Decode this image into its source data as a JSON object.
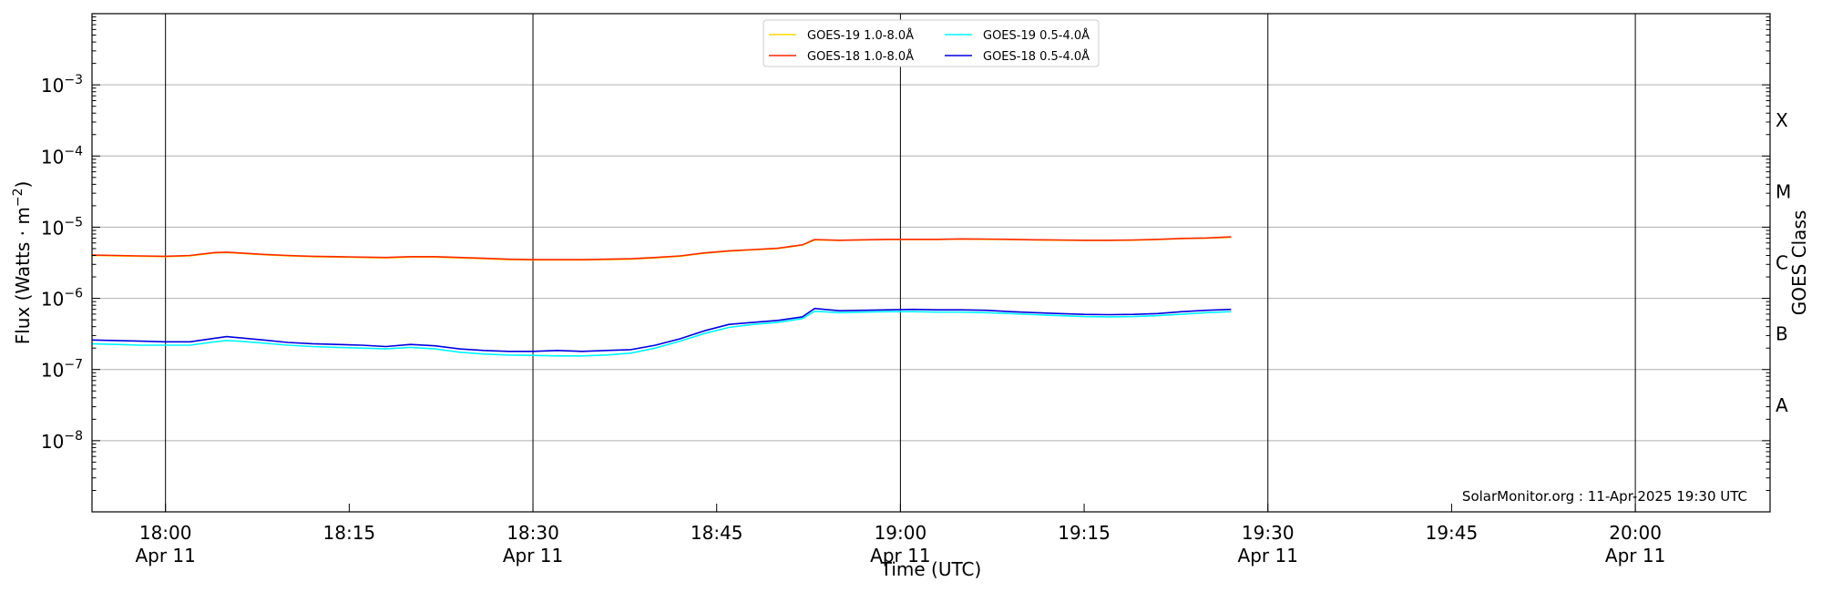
{
  "chart_data": {
    "type": "line",
    "xlabel": "Time (UTC)",
    "ylabel_main": "Flux (Watts · m",
    "ylabel_sup": "−2",
    "ylabel_close": ")",
    "y2label": "GOES Class",
    "scale": "log",
    "xlim": [
      "17:54",
      "20:11"
    ],
    "ylim": [
      1e-09,
      0.01
    ],
    "grid": "horizontal at each decade; vertical lines at 18:00, 18:30, 19:00, 19:30, 20:00",
    "legend": {
      "placement": "top-center",
      "columns": 2
    },
    "x_ticks": [
      {
        "t": "18:00",
        "label": "18:00",
        "sub": "Apr 11",
        "major": true
      },
      {
        "t": "18:15",
        "label": "18:15",
        "sub": "",
        "major": false
      },
      {
        "t": "18:30",
        "label": "18:30",
        "sub": "Apr 11",
        "major": true
      },
      {
        "t": "18:45",
        "label": "18:45",
        "sub": "",
        "major": false
      },
      {
        "t": "19:00",
        "label": "19:00",
        "sub": "Apr 11",
        "major": true
      },
      {
        "t": "19:15",
        "label": "19:15",
        "sub": "",
        "major": false
      },
      {
        "t": "19:30",
        "label": "19:30",
        "sub": "Apr 11",
        "major": true
      },
      {
        "t": "19:45",
        "label": "19:45",
        "sub": "",
        "major": false
      },
      {
        "t": "20:00",
        "label": "20:00",
        "sub": "Apr 11",
        "major": true
      }
    ],
    "y_ticks": [
      {
        "exp": -8,
        "label_base": "10",
        "label_exp": "−8"
      },
      {
        "exp": -7,
        "label_base": "10",
        "label_exp": "−7"
      },
      {
        "exp": -6,
        "label_base": "10",
        "label_exp": "−6"
      },
      {
        "exp": -5,
        "label_base": "10",
        "label_exp": "−5"
      },
      {
        "exp": -4,
        "label_base": "10",
        "label_exp": "−4"
      },
      {
        "exp": -3,
        "label_base": "10",
        "label_exp": "−3"
      }
    ],
    "classes": [
      {
        "label": "A",
        "exp": -7.5
      },
      {
        "label": "B",
        "exp": -6.5
      },
      {
        "label": "C",
        "exp": -5.5
      },
      {
        "label": "M",
        "exp": -4.5
      },
      {
        "label": "X",
        "exp": -3.5
      }
    ],
    "x": [
      "17:54",
      "17:56",
      "17:58",
      "18:00",
      "18:02",
      "18:04",
      "18:05",
      "18:06",
      "18:08",
      "18:10",
      "18:12",
      "18:14",
      "18:16",
      "18:18",
      "18:20",
      "18:22",
      "18:24",
      "18:26",
      "18:28",
      "18:30",
      "18:32",
      "18:34",
      "18:36",
      "18:38",
      "18:40",
      "18:42",
      "18:44",
      "18:46",
      "18:48",
      "18:50",
      "18:52",
      "18:53",
      "18:55",
      "18:57",
      "18:59",
      "19:01",
      "19:03",
      "19:05",
      "19:07",
      "19:09",
      "19:11",
      "19:13",
      "19:15",
      "19:17",
      "19:19",
      "19:21",
      "19:23",
      "19:25",
      "19:27"
    ],
    "series": [
      {
        "name": "GOES-19 1.0-8.0Å",
        "color": "#ffd700",
        "values": [
          4e-06,
          3.95e-06,
          3.9e-06,
          3.85e-06,
          3.95e-06,
          4.35e-06,
          4.4e-06,
          4.3e-06,
          4.1e-06,
          3.95e-06,
          3.85e-06,
          3.8e-06,
          3.75e-06,
          3.7e-06,
          3.8e-06,
          3.8e-06,
          3.7e-06,
          3.6e-06,
          3.5e-06,
          3.45e-06,
          3.45e-06,
          3.45e-06,
          3.5e-06,
          3.55e-06,
          3.7e-06,
          3.9e-06,
          4.3e-06,
          4.6e-06,
          4.8e-06,
          5e-06,
          5.6e-06,
          6.6e-06,
          6.5e-06,
          6.6e-06,
          6.7e-06,
          6.7e-06,
          6.7e-06,
          6.8e-06,
          6.75e-06,
          6.7e-06,
          6.6e-06,
          6.55e-06,
          6.5e-06,
          6.5e-06,
          6.55e-06,
          6.7e-06,
          6.9e-06,
          7e-06,
          7.2e-06
        ]
      },
      {
        "name": "GOES-18 1.0-8.0Å",
        "color": "#ff2a00",
        "values": [
          4.05e-06,
          4e-06,
          3.95e-06,
          3.9e-06,
          4e-06,
          4.4e-06,
          4.45e-06,
          4.35e-06,
          4.15e-06,
          4e-06,
          3.9e-06,
          3.85e-06,
          3.8e-06,
          3.75e-06,
          3.85e-06,
          3.85e-06,
          3.75e-06,
          3.65e-06,
          3.55e-06,
          3.5e-06,
          3.5e-06,
          3.5e-06,
          3.55e-06,
          3.6e-06,
          3.75e-06,
          3.95e-06,
          4.35e-06,
          4.65e-06,
          4.85e-06,
          5.05e-06,
          5.65e-06,
          6.7e-06,
          6.55e-06,
          6.65e-06,
          6.75e-06,
          6.75e-06,
          6.75e-06,
          6.85e-06,
          6.8e-06,
          6.75e-06,
          6.65e-06,
          6.6e-06,
          6.55e-06,
          6.55e-06,
          6.6e-06,
          6.75e-06,
          6.95e-06,
          7.05e-06,
          7.3e-06
        ]
      },
      {
        "name": "GOES-19 0.5-4.0Å",
        "color": "#00f5ff",
        "values": [
          2.3e-07,
          2.25e-07,
          2.2e-07,
          2.2e-07,
          2.2e-07,
          2.45e-07,
          2.55e-07,
          2.5e-07,
          2.35e-07,
          2.2e-07,
          2.1e-07,
          2.05e-07,
          2e-07,
          1.95e-07,
          2.05e-07,
          1.95e-07,
          1.75e-07,
          1.65e-07,
          1.6e-07,
          1.58e-07,
          1.55e-07,
          1.55e-07,
          1.6e-07,
          1.7e-07,
          2e-07,
          2.5e-07,
          3.2e-07,
          3.9e-07,
          4.3e-07,
          4.6e-07,
          5.2e-07,
          6.6e-07,
          6.3e-07,
          6.4e-07,
          6.5e-07,
          6.5e-07,
          6.4e-07,
          6.4e-07,
          6.3e-07,
          6.1e-07,
          5.9e-07,
          5.7e-07,
          5.55e-07,
          5.5e-07,
          5.55e-07,
          5.7e-07,
          6e-07,
          6.3e-07,
          6.5e-07
        ]
      },
      {
        "name": "GOES-18 0.5-4.0Å",
        "color": "#0000e0",
        "values": [
          2.6e-07,
          2.55e-07,
          2.5e-07,
          2.45e-07,
          2.45e-07,
          2.75e-07,
          2.9e-07,
          2.8e-07,
          2.6e-07,
          2.4e-07,
          2.3e-07,
          2.25e-07,
          2.2e-07,
          2.1e-07,
          2.25e-07,
          2.15e-07,
          1.95e-07,
          1.85e-07,
          1.8e-07,
          1.8e-07,
          1.85e-07,
          1.8e-07,
          1.85e-07,
          1.9e-07,
          2.2e-07,
          2.7e-07,
          3.5e-07,
          4.3e-07,
          4.6e-07,
          4.9e-07,
          5.5e-07,
          7.2e-07,
          6.7e-07,
          6.8e-07,
          6.9e-07,
          7e-07,
          6.9e-07,
          6.9e-07,
          6.8e-07,
          6.5e-07,
          6.3e-07,
          6.1e-07,
          5.95e-07,
          5.9e-07,
          5.95e-07,
          6.1e-07,
          6.5e-07,
          6.8e-07,
          7e-07
        ]
      }
    ],
    "credit": "SolarMonitor.org : 11-Apr-2025 19:30 UTC"
  }
}
